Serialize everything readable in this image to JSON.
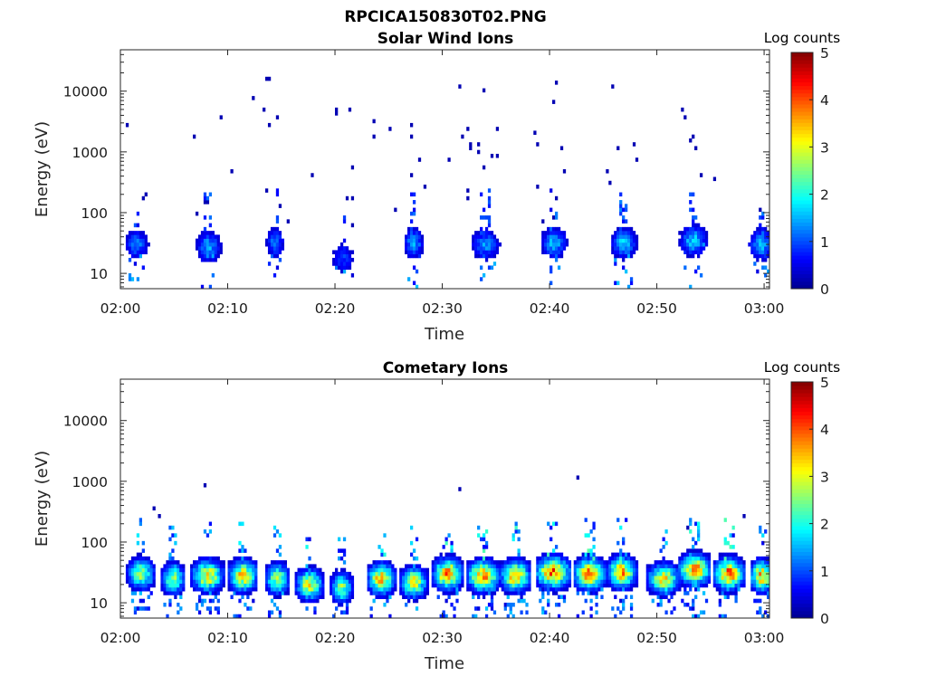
{
  "figure_title": "RPCICA150830T02.PNG",
  "chart_data": [
    {
      "type": "heatmap",
      "title": "Solar Wind Ions",
      "xlabel": "Time",
      "ylabel": "Energy (eV)",
      "x_tick_labels": [
        "02:00",
        "02:10",
        "02:20",
        "02:30",
        "02:40",
        "02:50",
        "03:00"
      ],
      "x_tick_minutes": [
        0,
        10,
        20,
        30,
        40,
        50,
        60
      ],
      "xlim_minutes": [
        0,
        60.5
      ],
      "yscale": "log",
      "ylim": [
        5.6,
        48000
      ],
      "y_tick_labels": [
        "10",
        "100",
        "1000",
        "10000"
      ],
      "y_tick_values": [
        10,
        100,
        1000,
        10000
      ],
      "colorbar": {
        "label": "Log counts",
        "ticks": [
          "0",
          "1",
          "2",
          "3",
          "4",
          "5"
        ],
        "range": [
          0,
          5
        ],
        "colormap": "jet"
      },
      "colormap": [
        "#00008f",
        "#0000ff",
        "#0080ff",
        "#00ffff",
        "#80ff80",
        "#ffff00",
        "#ff8000",
        "#ff0000",
        "#800000"
      ],
      "bursts": [
        {
          "t": 1.4,
          "e": 30,
          "w": 2.0,
          "i": 1.2
        },
        {
          "t": 8.1,
          "e": 28,
          "w": 2.0,
          "i": 1.4
        },
        {
          "t": 14.3,
          "e": 32,
          "w": 1.5,
          "i": 1.2
        },
        {
          "t": 20.6,
          "e": 18,
          "w": 2.0,
          "i": 0.9
        },
        {
          "t": 27.2,
          "e": 32,
          "w": 1.6,
          "i": 1.4
        },
        {
          "t": 33.9,
          "e": 30,
          "w": 2.4,
          "i": 1.3
        },
        {
          "t": 40.3,
          "e": 32,
          "w": 2.1,
          "i": 1.5
        },
        {
          "t": 46.8,
          "e": 32,
          "w": 2.1,
          "i": 1.6
        },
        {
          "t": 53.3,
          "e": 35,
          "w": 2.2,
          "i": 1.6
        },
        {
          "t": 59.6,
          "e": 30,
          "w": 2.0,
          "i": 1.5
        }
      ],
      "scatter_density": 0.55,
      "scatter_emax": 18000
    },
    {
      "type": "heatmap",
      "title": "Cometary Ions",
      "xlabel": "Time",
      "ylabel": "Energy (eV)",
      "x_tick_labels": [
        "02:00",
        "02:10",
        "02:20",
        "02:30",
        "02:40",
        "02:50",
        "03:00"
      ],
      "x_tick_minutes": [
        0,
        10,
        20,
        30,
        40,
        50,
        60
      ],
      "xlim_minutes": [
        0,
        60.5
      ],
      "yscale": "log",
      "ylim": [
        5.6,
        48000
      ],
      "y_tick_labels": [
        "10",
        "100",
        "1000",
        "10000"
      ],
      "y_tick_values": [
        10,
        100,
        1000,
        10000
      ],
      "colorbar": {
        "label": "Log counts",
        "ticks": [
          "0",
          "1",
          "2",
          "3",
          "4",
          "5"
        ],
        "range": [
          0,
          5
        ],
        "colormap": "jet"
      },
      "colormap": [
        "#00008f",
        "#0000ff",
        "#0080ff",
        "#00ffff",
        "#80ff80",
        "#ffff00",
        "#ff8000",
        "#ff0000",
        "#800000"
      ],
      "bursts": [
        {
          "t": 1.8,
          "e": 30,
          "w": 2.2,
          "i": 2.6
        },
        {
          "t": 4.8,
          "e": 25,
          "w": 2.0,
          "i": 2.4
        },
        {
          "t": 8.0,
          "e": 28,
          "w": 2.6,
          "i": 3.2
        },
        {
          "t": 11.3,
          "e": 28,
          "w": 2.4,
          "i": 3.2
        },
        {
          "t": 14.5,
          "e": 25,
          "w": 2.0,
          "i": 2.6
        },
        {
          "t": 17.5,
          "e": 20,
          "w": 2.2,
          "i": 3.0
        },
        {
          "t": 20.5,
          "e": 18,
          "w": 1.8,
          "i": 2.4
        },
        {
          "t": 24.2,
          "e": 25,
          "w": 2.2,
          "i": 3.4
        },
        {
          "t": 27.2,
          "e": 22,
          "w": 2.2,
          "i": 3.0
        },
        {
          "t": 30.4,
          "e": 30,
          "w": 2.4,
          "i": 3.6
        },
        {
          "t": 33.7,
          "e": 28,
          "w": 2.6,
          "i": 3.6
        },
        {
          "t": 36.7,
          "e": 28,
          "w": 2.4,
          "i": 3.4
        },
        {
          "t": 40.2,
          "e": 32,
          "w": 2.8,
          "i": 3.8
        },
        {
          "t": 43.6,
          "e": 30,
          "w": 2.6,
          "i": 3.7
        },
        {
          "t": 46.6,
          "e": 32,
          "w": 2.4,
          "i": 3.4
        },
        {
          "t": 50.5,
          "e": 25,
          "w": 2.6,
          "i": 3.0
        },
        {
          "t": 53.4,
          "e": 35,
          "w": 2.6,
          "i": 3.6
        },
        {
          "t": 56.6,
          "e": 30,
          "w": 2.4,
          "i": 3.8
        },
        {
          "t": 59.7,
          "e": 28,
          "w": 2.0,
          "i": 3.4
        }
      ],
      "scatter_density": 0.08,
      "scatter_emax": 1500
    }
  ]
}
